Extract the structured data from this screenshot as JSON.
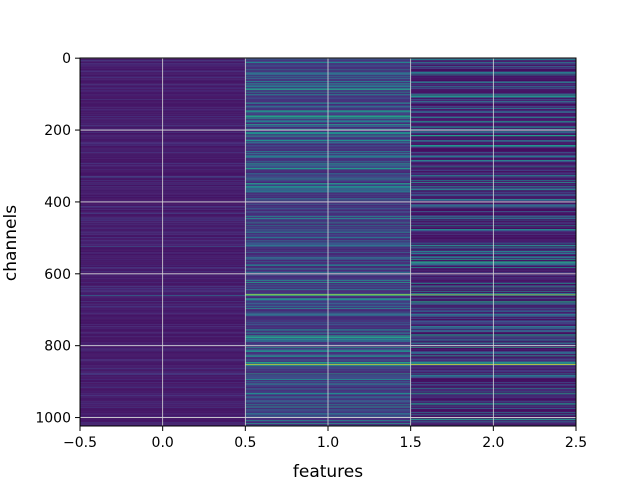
{
  "chart_data": {
    "type": "heatmap",
    "title": "",
    "xlabel": "features",
    "ylabel": "channels",
    "colormap": "viridis",
    "n_rows": 1024,
    "columns": [
      {
        "feature": 0,
        "base_level": 0.06,
        "variation": 0.05,
        "bright_rows": [
          {
            "row": 660,
            "value": 0.35
          },
          {
            "row": 330,
            "value": 0.25
          },
          {
            "row": 525,
            "value": 0.25
          }
        ]
      },
      {
        "feature": 1,
        "base_level": 0.12,
        "variation": 0.22,
        "bright_rows": [
          {
            "row": 658,
            "value": 0.92
          },
          {
            "row": 852,
            "value": 0.92
          },
          {
            "row": 95,
            "value": 0.5
          },
          {
            "row": 210,
            "value": 0.5
          },
          {
            "row": 805,
            "value": 0.55
          },
          {
            "row": 895,
            "value": 0.5
          }
        ]
      },
      {
        "feature": 2,
        "base_level": 0.04,
        "variation": 0.25,
        "bright_rows": [
          {
            "row": 658,
            "value": 0.85
          },
          {
            "row": 852,
            "value": 0.95
          },
          {
            "row": 215,
            "value": 0.55
          },
          {
            "row": 680,
            "value": 0.55
          },
          {
            "row": 805,
            "value": 0.6
          },
          {
            "row": 40,
            "value": 0.45
          }
        ]
      }
    ],
    "xlim": [
      -0.5,
      2.5
    ],
    "ylim": [
      1023.5,
      -0.5
    ],
    "x_ticks": [
      -0.5,
      0.0,
      0.5,
      1.0,
      1.5,
      2.0,
      2.5
    ],
    "x_tick_labels": [
      "−0.5",
      "0.0",
      "0.5",
      "1.0",
      "1.5",
      "2.0",
      "2.5"
    ],
    "y_ticks": [
      0,
      200,
      400,
      600,
      800,
      1000
    ],
    "y_tick_labels": [
      "0",
      "200",
      "400",
      "600",
      "800",
      "1000"
    ],
    "grid": true
  }
}
